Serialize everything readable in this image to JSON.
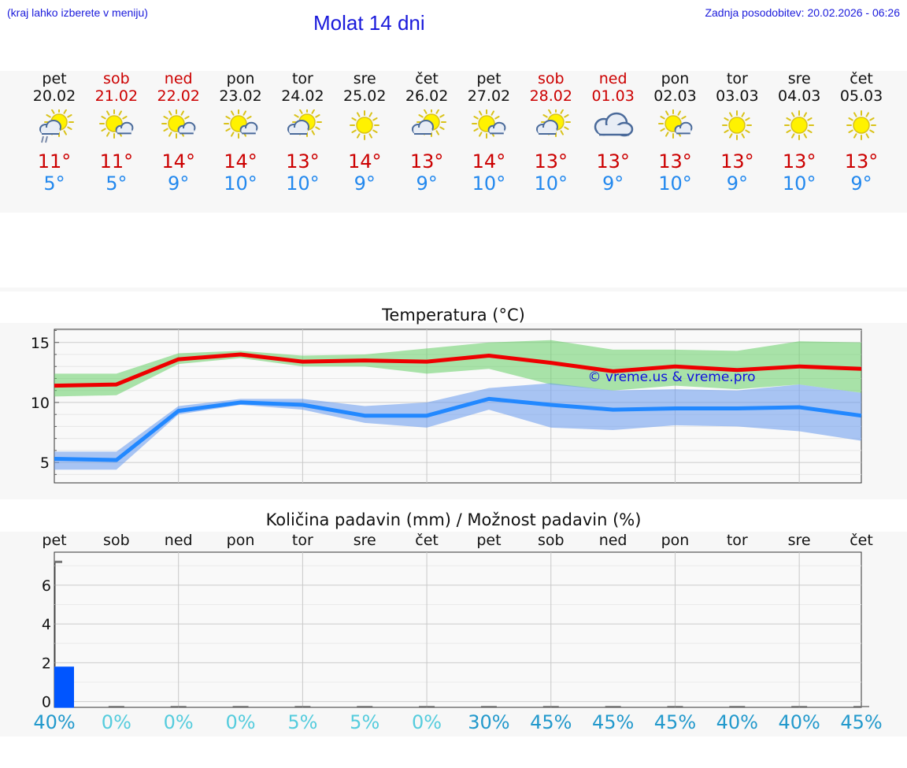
{
  "header": {
    "hint": "(kraj lahko izberete v meniju)",
    "title": "Molat 14 dni",
    "updated": "Zadnja posodobitev: 20.02.2026 - 06:26"
  },
  "days": [
    {
      "name": "pet",
      "date": "20.02",
      "weekend": false,
      "icon": "sun-cloud-rain-icon",
      "tmax": "11°",
      "tmin": "5°"
    },
    {
      "name": "sob",
      "date": "21.02",
      "weekend": true,
      "icon": "sun-small-cloud-icon",
      "tmax": "11°",
      "tmin": "5°"
    },
    {
      "name": "ned",
      "date": "22.02",
      "weekend": true,
      "icon": "sun-small-cloud-icon",
      "tmax": "14°",
      "tmin": "9°"
    },
    {
      "name": "pon",
      "date": "23.02",
      "weekend": false,
      "icon": "sun-small-cloud-icon",
      "tmax": "14°",
      "tmin": "10°"
    },
    {
      "name": "tor",
      "date": "24.02",
      "weekend": false,
      "icon": "sun-cloud-icon",
      "tmax": "13°",
      "tmin": "10°"
    },
    {
      "name": "sre",
      "date": "25.02",
      "weekend": false,
      "icon": "sun-icon",
      "tmax": "14°",
      "tmin": "9°"
    },
    {
      "name": "čet",
      "date": "26.02",
      "weekend": false,
      "icon": "sun-cloud-icon",
      "tmax": "13°",
      "tmin": "9°"
    },
    {
      "name": "pet",
      "date": "27.02",
      "weekend": false,
      "icon": "sun-small-cloud-icon",
      "tmax": "14°",
      "tmin": "10°"
    },
    {
      "name": "sob",
      "date": "28.02",
      "weekend": true,
      "icon": "sun-cloud-icon",
      "tmax": "13°",
      "tmin": "10°"
    },
    {
      "name": "ned",
      "date": "01.03",
      "weekend": true,
      "icon": "cloud-icon",
      "tmax": "13°",
      "tmin": "9°"
    },
    {
      "name": "pon",
      "date": "02.03",
      "weekend": false,
      "icon": "sun-small-cloud-icon",
      "tmax": "13°",
      "tmin": "10°"
    },
    {
      "name": "tor",
      "date": "03.03",
      "weekend": false,
      "icon": "sun-icon",
      "tmax": "13°",
      "tmin": "9°"
    },
    {
      "name": "sre",
      "date": "04.03",
      "weekend": false,
      "icon": "sun-icon",
      "tmax": "13°",
      "tmin": "10°"
    },
    {
      "name": "čet",
      "date": "05.03",
      "weekend": false,
      "icon": "sun-icon",
      "tmax": "13°",
      "tmin": "9°"
    }
  ],
  "chart_data": [
    {
      "type": "line",
      "title": "Temperatura (°C)",
      "watermark": "© vreme.us & vreme.pro",
      "ylim": [
        3.3,
        16.1
      ],
      "yticks": [
        5,
        10,
        15
      ],
      "x_days": 13,
      "series": [
        {
          "name": "max",
          "color": "#ee0000",
          "x": [
            0,
            1,
            2,
            3,
            4,
            5,
            6,
            7,
            8,
            9,
            10,
            11,
            12,
            13
          ],
          "values": [
            11.4,
            11.5,
            13.6,
            14.0,
            13.4,
            13.5,
            13.4,
            13.9,
            13.3,
            12.6,
            13.0,
            12.7,
            13.0,
            12.8
          ]
        },
        {
          "name": "min",
          "color": "#2288ff",
          "x": [
            0,
            1,
            2,
            3,
            4,
            5,
            6,
            7,
            8,
            9,
            10,
            11,
            12,
            13
          ],
          "values": [
            5.3,
            5.2,
            9.3,
            10.0,
            9.8,
            8.9,
            8.9,
            10.3,
            9.8,
            9.4,
            9.5,
            9.5,
            9.6,
            8.9
          ]
        }
      ],
      "bands": [
        {
          "name": "max-range",
          "color": "#66d066",
          "x": [
            0,
            1,
            2,
            3,
            4,
            5,
            6,
            7,
            8,
            9,
            10,
            11,
            12,
            13
          ],
          "upper": [
            12.4,
            12.4,
            14.1,
            14.3,
            13.9,
            14.0,
            14.5,
            15.0,
            15.2,
            14.4,
            14.4,
            14.3,
            15.1,
            15.0
          ],
          "lower": [
            10.5,
            10.6,
            13.2,
            13.7,
            13.0,
            13.0,
            12.4,
            12.8,
            11.5,
            11.0,
            11.4,
            11.1,
            11.5,
            10.8
          ]
        },
        {
          "name": "min-range",
          "color": "#6699ee",
          "x": [
            0,
            1,
            2,
            3,
            4,
            5,
            6,
            7,
            8,
            9,
            10,
            11,
            12,
            13
          ],
          "upper": [
            5.9,
            5.9,
            9.7,
            10.3,
            10.3,
            9.7,
            10.0,
            11.2,
            11.6,
            11.0,
            11.1,
            11.0,
            11.5,
            10.8
          ],
          "lower": [
            4.4,
            4.4,
            9.0,
            9.8,
            9.4,
            8.3,
            7.9,
            9.4,
            7.9,
            7.7,
            8.1,
            8.0,
            7.6,
            6.8
          ]
        }
      ]
    },
    {
      "type": "bar",
      "title": "Količina padavin (mm) / Možnost padavin (%)",
      "ylim": [
        -0.3,
        7.7
      ],
      "yticks": [
        0,
        2,
        4,
        6
      ],
      "categories": [
        "pet",
        "sob",
        "ned",
        "pon",
        "tor",
        "sre",
        "čet",
        "pet",
        "sob",
        "ned",
        "pon",
        "tor",
        "sre",
        "čet"
      ],
      "values": [
        1.8,
        0,
        0,
        0,
        0,
        0,
        0,
        0,
        0,
        0,
        0,
        0,
        0,
        0
      ],
      "max_mark": 7.2,
      "probabilities": [
        "40%",
        "0%",
        "0%",
        "0%",
        "5%",
        "5%",
        "0%",
        "30%",
        "45%",
        "45%",
        "45%",
        "40%",
        "40%",
        "45%"
      ]
    }
  ],
  "colors": {
    "link": "#1a1adb",
    "weekend": "#cc0000",
    "tmax": "#cc0000",
    "tmin": "#2288ee",
    "rain_bar": "#0055ff",
    "prob_low": "#55ccdd",
    "prob_high": "#2299cc"
  }
}
